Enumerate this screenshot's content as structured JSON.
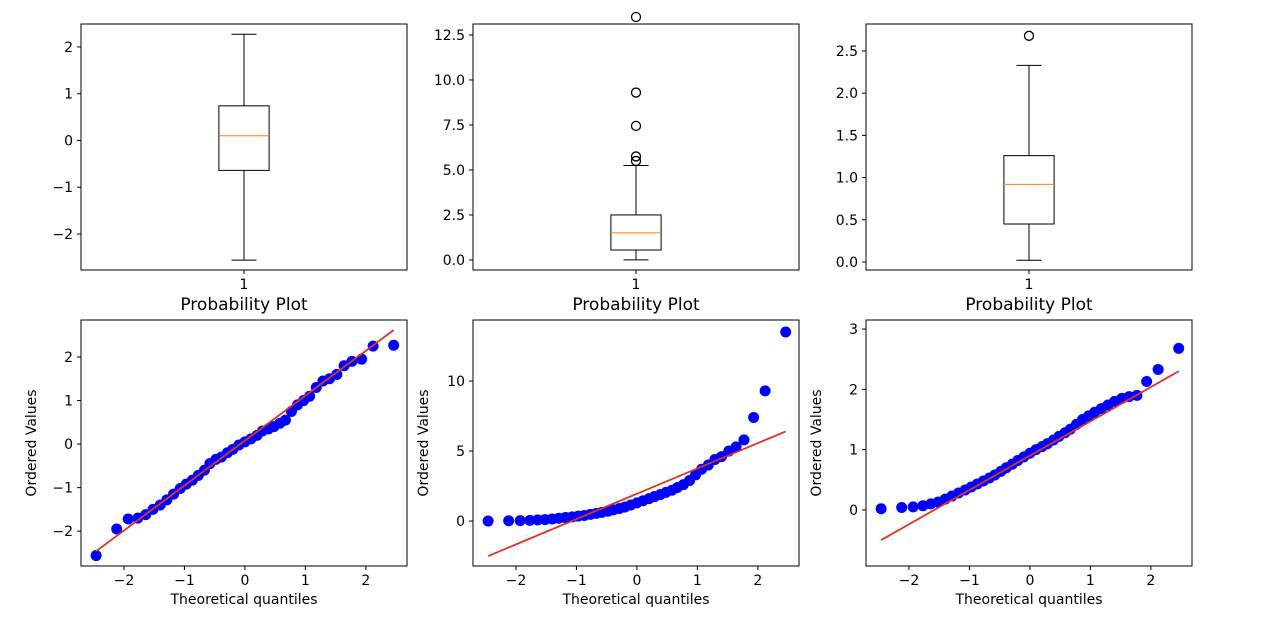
{
  "chart_data": [
    {
      "type": "box",
      "categories": [
        "1"
      ],
      "xlim": [
        0.5,
        1.5
      ],
      "xticks": [
        {
          "value": 1,
          "label": "1"
        }
      ],
      "ylim": [
        -2.77,
        2.49
      ],
      "yticks": [
        {
          "value": -2,
          "label": "−2"
        },
        {
          "value": -1,
          "label": "−1"
        },
        0,
        1,
        2
      ],
      "boxes": [
        {
          "q1": -0.64,
          "median": 0.1,
          "q3": 0.74,
          "whislo": -2.56,
          "whishi": 2.27,
          "fliers": []
        }
      ],
      "color": "#000000",
      "median_color": "#ff7f0e"
    },
    {
      "type": "box",
      "categories": [
        "1"
      ],
      "xlim": [
        0.5,
        1.5
      ],
      "xticks": [
        {
          "value": 1,
          "label": "1"
        }
      ],
      "ylim": [
        -0.56,
        13.11
      ],
      "yticks": [
        {
          "value": 0,
          "label": "0.0"
        },
        {
          "value": 2.5,
          "label": "2.5"
        },
        {
          "value": 5,
          "label": "5.0"
        },
        {
          "value": 7.5,
          "label": "7.5"
        },
        {
          "value": 10,
          "label": "10.0"
        },
        {
          "value": 12.5,
          "label": "12.5"
        }
      ],
      "boxes": [
        {
          "q1": 0.55,
          "median": 1.5,
          "q3": 2.5,
          "whislo": 0.0,
          "whishi": 5.25,
          "fliers": [
            5.5,
            5.75,
            7.45,
            9.3,
            13.5
          ]
        }
      ],
      "color": "#000000",
      "median_color": "#ff7f0e"
    },
    {
      "type": "box",
      "categories": [
        "1"
      ],
      "xlim": [
        0.5,
        1.5
      ],
      "xticks": [
        {
          "value": 1,
          "label": "1"
        }
      ],
      "ylim": [
        -0.095,
        2.82
      ],
      "yticks": [
        {
          "value": 0,
          "label": "0.0"
        },
        {
          "value": 0.5,
          "label": "0.5"
        },
        {
          "value": 1,
          "label": "1.0"
        },
        {
          "value": 1.5,
          "label": "1.5"
        },
        {
          "value": 2,
          "label": "2.0"
        },
        {
          "value": 2.5,
          "label": "2.5"
        }
      ],
      "boxes": [
        {
          "q1": 0.45,
          "median": 0.92,
          "q3": 1.26,
          "whislo": 0.02,
          "whishi": 2.33,
          "fliers": [
            2.68
          ]
        }
      ],
      "color": "#000000",
      "median_color": "#ff7f0e"
    },
    {
      "type": "scatter",
      "title": "Probability Plot",
      "xlabel": "Theoretical quantiles",
      "ylabel": "Ordered Values",
      "xlim": [
        -2.71,
        2.68
      ],
      "xticks": [
        {
          "value": -2,
          "label": "−2"
        },
        {
          "value": -1,
          "label": "−1"
        },
        0,
        1,
        2
      ],
      "ylim": [
        -2.8,
        2.85
      ],
      "yticks": [
        {
          "value": -2,
          "label": "−2"
        },
        {
          "value": -1,
          "label": "−1"
        },
        0,
        1,
        2
      ],
      "series": [
        {
          "color": "#0000ff",
          "x": [
            -2.46,
            -2.12,
            -1.93,
            -1.77,
            -1.64,
            -1.52,
            -1.4,
            -1.29,
            -1.18,
            -1.07,
            -0.97,
            -0.87,
            -0.77,
            -0.67,
            -0.58,
            -0.48,
            -0.39,
            -0.29,
            -0.2,
            -0.1,
            0,
            0.1,
            0.2,
            0.29,
            0.39,
            0.48,
            0.58,
            0.67,
            0.77,
            0.87,
            0.97,
            1.07,
            1.18,
            1.29,
            1.4,
            1.52,
            1.64,
            1.77,
            1.93,
            2.12,
            2.46
          ],
          "values": [
            -2.56,
            -1.95,
            -1.72,
            -1.7,
            -1.62,
            -1.5,
            -1.4,
            -1.28,
            -1.15,
            -1.02,
            -0.92,
            -0.83,
            -0.72,
            -0.6,
            -0.45,
            -0.35,
            -0.3,
            -0.2,
            -0.12,
            -0.02,
            0.05,
            0.12,
            0.2,
            0.3,
            0.35,
            0.4,
            0.48,
            0.55,
            0.75,
            0.9,
            1.0,
            1.1,
            1.3,
            1.45,
            1.5,
            1.6,
            1.8,
            1.9,
            1.95,
            2.25,
            2.27
          ]
        },
        {
          "type": "line",
          "color": "#e0321e",
          "x": [
            -2.46,
            2.46
          ],
          "values": [
            -2.46,
            2.62
          ]
        }
      ]
    },
    {
      "type": "scatter",
      "title": "Probability Plot",
      "xlabel": "Theoretical quantiles",
      "ylabel": "Ordered Values",
      "xlim": [
        -2.71,
        2.68
      ],
      "xticks": [
        {
          "value": -2,
          "label": "−2"
        },
        {
          "value": -1,
          "label": "−1"
        },
        0,
        1,
        2
      ],
      "ylim": [
        -3.21,
        14.36
      ],
      "yticks": [
        0,
        5,
        10
      ],
      "series": [
        {
          "color": "#0000ff",
          "x": [
            -2.46,
            -2.12,
            -1.93,
            -1.77,
            -1.64,
            -1.52,
            -1.4,
            -1.29,
            -1.18,
            -1.07,
            -0.97,
            -0.87,
            -0.77,
            -0.67,
            -0.58,
            -0.48,
            -0.39,
            -0.29,
            -0.2,
            -0.1,
            0,
            0.1,
            0.2,
            0.29,
            0.39,
            0.48,
            0.58,
            0.67,
            0.77,
            0.87,
            0.97,
            1.07,
            1.18,
            1.29,
            1.4,
            1.52,
            1.64,
            1.77,
            1.93,
            2.12,
            2.46
          ],
          "values": [
            0.0,
            0.02,
            0.03,
            0.05,
            0.08,
            0.1,
            0.15,
            0.2,
            0.25,
            0.3,
            0.35,
            0.4,
            0.48,
            0.55,
            0.62,
            0.7,
            0.8,
            0.9,
            1.0,
            1.15,
            1.3,
            1.45,
            1.6,
            1.75,
            1.9,
            2.05,
            2.2,
            2.4,
            2.6,
            2.9,
            3.3,
            3.7,
            4.0,
            4.4,
            4.6,
            5.0,
            5.3,
            5.8,
            7.4,
            9.3,
            13.5
          ]
        },
        {
          "type": "line",
          "color": "#e0321e",
          "x": [
            -2.46,
            2.46
          ],
          "values": [
            -2.5,
            6.4
          ]
        }
      ]
    },
    {
      "type": "scatter",
      "title": "Probability Plot",
      "xlabel": "Theoretical quantiles",
      "ylabel": "Ordered Values",
      "xlim": [
        -2.71,
        2.68
      ],
      "xticks": [
        {
          "value": -2,
          "label": "−2"
        },
        {
          "value": -1,
          "label": "−1"
        },
        0,
        1,
        2
      ],
      "ylim": [
        -0.93,
        3.15
      ],
      "yticks": [
        0,
        1,
        2,
        3
      ],
      "series": [
        {
          "color": "#0000ff",
          "x": [
            -2.46,
            -2.12,
            -1.93,
            -1.77,
            -1.64,
            -1.52,
            -1.4,
            -1.29,
            -1.18,
            -1.07,
            -0.97,
            -0.87,
            -0.77,
            -0.67,
            -0.58,
            -0.48,
            -0.39,
            -0.29,
            -0.2,
            -0.1,
            0,
            0.1,
            0.2,
            0.29,
            0.39,
            0.48,
            0.58,
            0.67,
            0.77,
            0.87,
            0.97,
            1.07,
            1.18,
            1.29,
            1.4,
            1.52,
            1.64,
            1.77,
            1.93,
            2.12,
            2.46
          ],
          "values": [
            0.02,
            0.04,
            0.05,
            0.07,
            0.1,
            0.13,
            0.18,
            0.23,
            0.28,
            0.33,
            0.38,
            0.43,
            0.48,
            0.53,
            0.58,
            0.64,
            0.7,
            0.76,
            0.82,
            0.88,
            0.94,
            1.0,
            1.05,
            1.1,
            1.16,
            1.22,
            1.28,
            1.34,
            1.42,
            1.5,
            1.56,
            1.62,
            1.68,
            1.74,
            1.8,
            1.85,
            1.88,
            1.9,
            2.13,
            2.33,
            2.68
          ]
        },
        {
          "type": "line",
          "color": "#e0321e",
          "x": [
            -2.46,
            2.46
          ],
          "values": [
            -0.5,
            2.3
          ]
        }
      ]
    }
  ]
}
